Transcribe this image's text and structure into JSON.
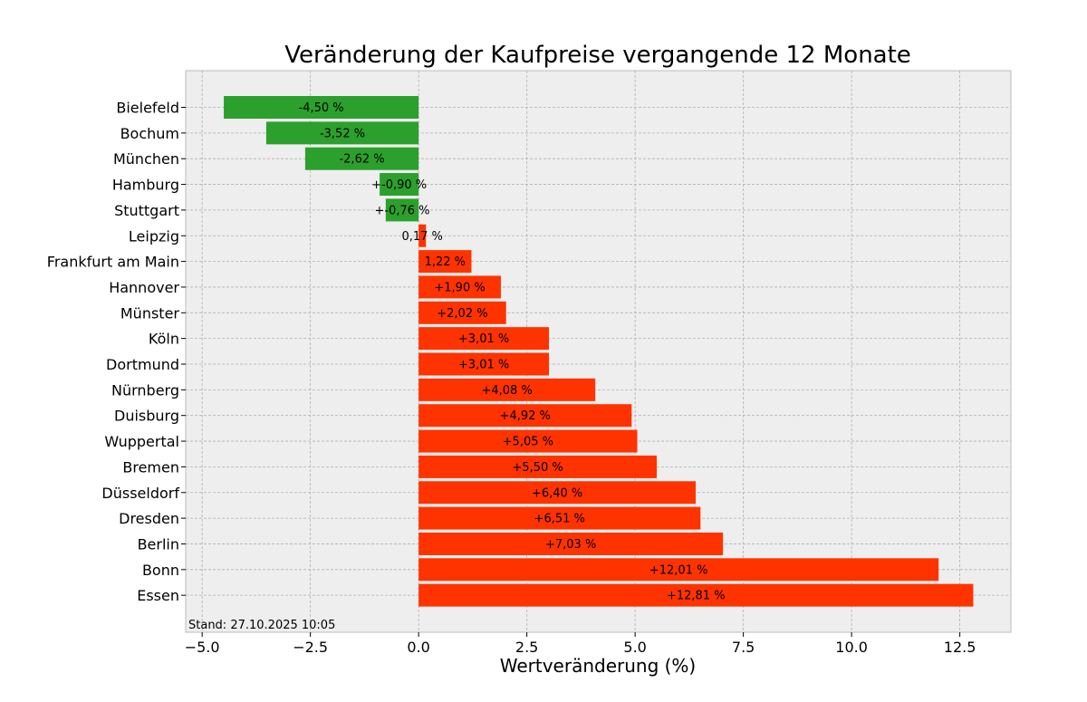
{
  "chart_data": {
    "type": "bar",
    "orientation": "horizontal",
    "title": "Veränderung der Kaufpreise vergangende 12 Monate",
    "xlabel": "Wertveränderung (%)",
    "ylabel": "",
    "xlim": [
      -5.38,
      13.68
    ],
    "xticks": [
      -5.0,
      -2.5,
      0.0,
      2.5,
      5.0,
      7.5,
      10.0,
      12.5
    ],
    "xtick_labels": [
      "−5.0",
      "−2.5",
      "0.0",
      "2.5",
      "5.0",
      "7.5",
      "10.0",
      "12.5"
    ],
    "grid": true,
    "categories": [
      "Bielefeld",
      "Bochum",
      "München",
      "Hamburg",
      "Stuttgart",
      "Leipzig",
      "Frankfurt am Main",
      "Hannover",
      "Münster",
      "Köln",
      "Dortmund",
      "Nürnberg",
      "Duisburg",
      "Wuppertal",
      "Bremen",
      "Düsseldorf",
      "Dresden",
      "Berlin",
      "Bonn",
      "Essen"
    ],
    "values": [
      -4.5,
      -3.52,
      -2.62,
      -0.9,
      -0.76,
      0.17,
      1.22,
      1.9,
      2.02,
      3.01,
      3.01,
      4.08,
      4.92,
      5.05,
      5.5,
      6.4,
      6.51,
      7.03,
      12.01,
      12.81
    ],
    "labels": [
      "-4,50 %",
      "-3,52 %",
      "-2,62 %",
      "+-0,90 %",
      "+-0,76 %",
      "0,17 %",
      "1,22 %",
      "+1,90 %",
      "+2,02 %",
      "+3,01 %",
      "+3,01 %",
      "+4,08 %",
      "+4,92 %",
      "+5,05 %",
      "+5,50 %",
      "+6,40 %",
      "+6,51 %",
      "+7,03 %",
      "+12,01 %",
      "+12,81 %"
    ],
    "colors": {
      "negative": "#2ca02c",
      "positive": "#ff3300",
      "plot_background": "#eeeeee",
      "plot_border": "#bcbcbc",
      "grid": "#b0b0b0"
    },
    "footnote": "Stand: 27.10.2025 10:05"
  }
}
